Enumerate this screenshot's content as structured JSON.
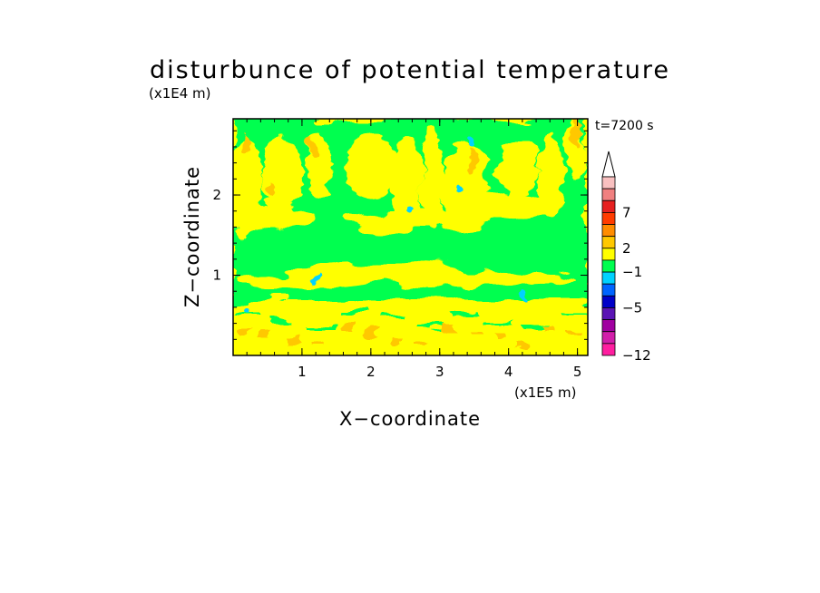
{
  "chart_data": {
    "type": "heatmap",
    "title": "disturbunce of potential temperature",
    "xlabel": "X−coordinate",
    "ylabel": "Z−coordinate",
    "x_unit": "(x1E5 m)",
    "y_unit": "(x1E4 m)",
    "time_label": "t=7200 s",
    "xlim": [
      0,
      5.15
    ],
    "ylim": [
      0,
      2.95
    ],
    "x_ticks": [
      "1",
      "2",
      "3",
      "4",
      "5"
    ],
    "y_ticks": [
      "1",
      "2"
    ],
    "colorbar": {
      "labels": [
        "7",
        "2",
        "−1",
        "−5",
        "−12"
      ],
      "colors": [
        "#f9c0c0",
        "#f08080",
        "#e62020",
        "#ff3c00",
        "#ff8c00",
        "#ffc800",
        "#ffff00",
        "#00ff50",
        "#00d2ff",
        "#0064ff",
        "#0000c8",
        "#5a14b4",
        "#a000a0",
        "#d21eaa",
        "#ff1ea0"
      ],
      "extend": "max"
    },
    "dominant_colors": [
      "#ffff00",
      "#00ff50",
      "#ffc800"
    ]
  }
}
